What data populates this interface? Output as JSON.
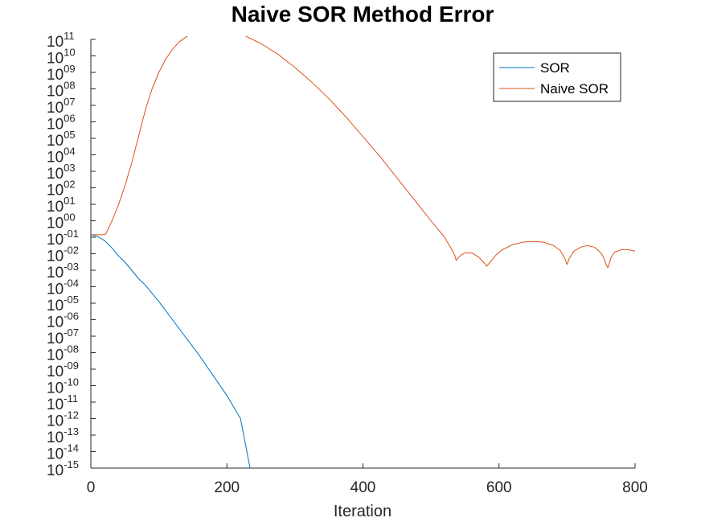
{
  "chart_data": {
    "type": "line",
    "title": "Naive SOR Method Error",
    "xlabel": "Iteration",
    "ylabel": "",
    "xlim": [
      0,
      800
    ],
    "ylim_log10": [
      -15,
      11
    ],
    "yscale": "log",
    "grid": false,
    "legend_position": "top-right",
    "xticks": [
      {
        "value": 0,
        "label": "0"
      },
      {
        "value": 200,
        "label": "200"
      },
      {
        "value": 400,
        "label": "400"
      },
      {
        "value": 600,
        "label": "600"
      },
      {
        "value": 800,
        "label": "800"
      }
    ],
    "yticks": [
      {
        "exp": 11,
        "label": "11"
      },
      {
        "exp": 10,
        "label": "10"
      },
      {
        "exp": 9,
        "label": "09"
      },
      {
        "exp": 8,
        "label": "08"
      },
      {
        "exp": 7,
        "label": "07"
      },
      {
        "exp": 6,
        "label": "06"
      },
      {
        "exp": 5,
        "label": "05"
      },
      {
        "exp": 4,
        "label": "04"
      },
      {
        "exp": 3,
        "label": "03"
      },
      {
        "exp": 2,
        "label": "02"
      },
      {
        "exp": 1,
        "label": "01"
      },
      {
        "exp": 0,
        "label": "00"
      },
      {
        "exp": -1,
        "label": "-01"
      },
      {
        "exp": -2,
        "label": "-02"
      },
      {
        "exp": -3,
        "label": "-03"
      },
      {
        "exp": -4,
        "label": "-04"
      },
      {
        "exp": -5,
        "label": "-05"
      },
      {
        "exp": -6,
        "label": "-06"
      },
      {
        "exp": -7,
        "label": "-07"
      },
      {
        "exp": -8,
        "label": "-08"
      },
      {
        "exp": -9,
        "label": "-09"
      },
      {
        "exp": -10,
        "label": "-10"
      },
      {
        "exp": -11,
        "label": "-11"
      },
      {
        "exp": -12,
        "label": "-12"
      },
      {
        "exp": -13,
        "label": "-13"
      },
      {
        "exp": -14,
        "label": "-14"
      },
      {
        "exp": -15,
        "label": "-15"
      }
    ],
    "ytick_base": "10",
    "series": [
      {
        "name": "SOR",
        "color": "#0072bd",
        "x": [
          0,
          10,
          20,
          30,
          40,
          50,
          60,
          70,
          80,
          100,
          120,
          140,
          160,
          180,
          200,
          220,
          234
        ],
        "log10_y": [
          -0.85,
          -0.95,
          -1.2,
          -1.6,
          -2.1,
          -2.5,
          -3.0,
          -3.5,
          -3.9,
          -4.9,
          -6.0,
          -7.1,
          -8.2,
          -9.4,
          -10.6,
          -12.0,
          -15.0
        ]
      },
      {
        "name": "Naive SOR",
        "color": "#d95319",
        "x": [
          0,
          10,
          18,
          22,
          30,
          40,
          50,
          60,
          70,
          80,
          90,
          100,
          110,
          120,
          130,
          140,
          150,
          160,
          170,
          180,
          200,
          225,
          250,
          275,
          300,
          325,
          350,
          375,
          400,
          425,
          450,
          475,
          500,
          520,
          530,
          535,
          537,
          540,
          545,
          550,
          560,
          570,
          578,
          582,
          586,
          595,
          605,
          620,
          635,
          650,
          665,
          680,
          690,
          697,
          700,
          703,
          710,
          720,
          730,
          740,
          750,
          755,
          758,
          760,
          762,
          765,
          770,
          780,
          790,
          800
        ],
        "log10_y": [
          -0.85,
          -0.85,
          -0.85,
          -0.8,
          -0.1,
          0.9,
          2.1,
          3.5,
          5.1,
          6.7,
          8.0,
          9.0,
          9.8,
          10.4,
          10.85,
          11.15,
          11.4,
          11.55,
          11.62,
          11.64,
          11.55,
          11.25,
          10.75,
          10.1,
          9.3,
          8.4,
          7.4,
          6.3,
          5.1,
          3.9,
          2.6,
          1.3,
          0.0,
          -1.0,
          -1.7,
          -2.1,
          -2.4,
          -2.25,
          -2.05,
          -1.95,
          -1.95,
          -2.2,
          -2.55,
          -2.75,
          -2.55,
          -2.1,
          -1.75,
          -1.45,
          -1.3,
          -1.25,
          -1.3,
          -1.5,
          -1.8,
          -2.3,
          -2.65,
          -2.3,
          -1.85,
          -1.6,
          -1.5,
          -1.6,
          -1.95,
          -2.35,
          -2.7,
          -2.85,
          -2.6,
          -2.2,
          -1.9,
          -1.75,
          -1.75,
          -1.85
        ]
      }
    ]
  }
}
